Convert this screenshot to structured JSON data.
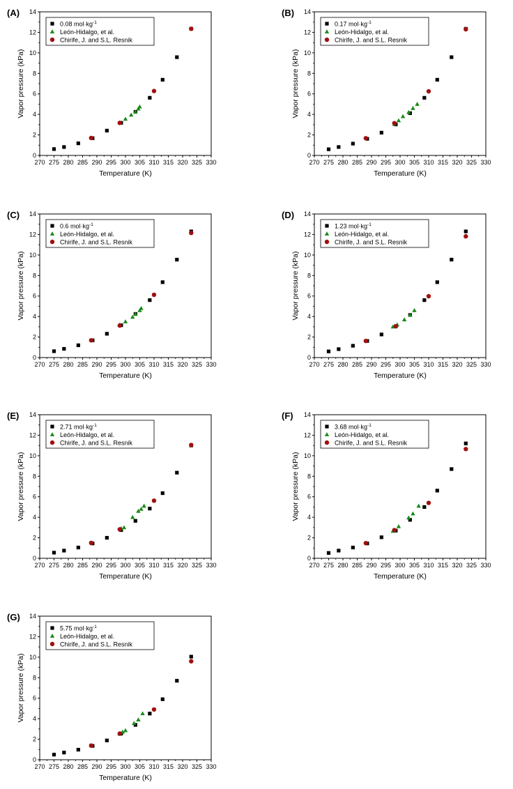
{
  "figure": {
    "colors": {
      "model": "#000000",
      "leon": "#1a8a1a",
      "chirife": "#a01010"
    }
  },
  "chart_data": [
    {
      "type": "scatter",
      "panel": "(A)",
      "title": "",
      "xlabel": "Temperature (K)",
      "ylabel": "Vapor pressure (kPa)",
      "xlim": [
        270,
        330
      ],
      "ylim": [
        0,
        14
      ],
      "xticks": [
        "270",
        "275",
        "280",
        "285",
        "290",
        "295",
        "300",
        "305",
        "310",
        "315",
        "320",
        "325",
        "330"
      ],
      "yticks": [
        "0",
        "2",
        "4",
        "6",
        "8",
        "10",
        "12",
        "14"
      ],
      "series": [
        {
          "name_prefix": "0.08 mol·kg",
          "name_sup": "-1",
          "marker": "square",
          "x": [
            275,
            278.5,
            283.5,
            288.5,
            293.5,
            298.5,
            303.5,
            308.5,
            313,
            318,
            323
          ],
          "y": [
            0.62,
            0.82,
            1.18,
            1.68,
            2.42,
            3.18,
            4.25,
            5.62,
            7.38,
            9.58,
            12.35
          ]
        },
        {
          "name": "León-Hidalgo, et al.",
          "marker": "triangle",
          "x": [
            298,
            300,
            302,
            303.5,
            304.5,
            305
          ],
          "y": [
            3.2,
            3.55,
            3.95,
            4.25,
            4.55,
            4.75
          ]
        },
        {
          "name": "Chirife, J. and S.L. Resnik",
          "marker": "circle",
          "x": [
            288,
            298,
            310,
            323
          ],
          "y": [
            1.7,
            3.17,
            6.28,
            12.35
          ]
        }
      ]
    },
    {
      "type": "scatter",
      "panel": "(B)",
      "title": "",
      "xlabel": "Temperature (K)",
      "ylabel": "Vapor pressure (kPa)",
      "xlim": [
        270,
        330
      ],
      "ylim": [
        0,
        14
      ],
      "xticks": [
        "270",
        "275",
        "280",
        "285",
        "290",
        "295",
        "300",
        "305",
        "310",
        "315",
        "320",
        "325",
        "330"
      ],
      "yticks": [
        "0",
        "2",
        "4",
        "6",
        "8",
        "10",
        "12",
        "14"
      ],
      "series": [
        {
          "name_prefix": "0.17 mol·kg",
          "name_sup": "-1",
          "marker": "square",
          "x": [
            275,
            278.5,
            283.5,
            288.5,
            293.5,
            298.5,
            303.5,
            308.5,
            313,
            318,
            323
          ],
          "y": [
            0.6,
            0.82,
            1.15,
            1.62,
            2.22,
            3.02,
            4.12,
            5.62,
            7.38,
            9.58,
            12.35
          ]
        },
        {
          "name": "León-Hidalgo, et al.",
          "marker": "triangle",
          "x": [
            298,
            299.5,
            301,
            303,
            304.5,
            306
          ],
          "y": [
            3.05,
            3.4,
            3.8,
            4.2,
            4.6,
            5.0
          ]
        },
        {
          "name": "Chirife, J. and S.L. Resnik",
          "marker": "circle",
          "x": [
            288,
            298,
            310,
            323
          ],
          "y": [
            1.68,
            3.15,
            6.25,
            12.3
          ]
        }
      ]
    },
    {
      "type": "scatter",
      "panel": "(C)",
      "title": "",
      "xlabel": "Temperature (K)",
      "ylabel": "Vapor pressure (kPa)",
      "xlim": [
        270,
        330
      ],
      "ylim": [
        0,
        14
      ],
      "xticks": [
        "270",
        "275",
        "280",
        "285",
        "290",
        "295",
        "300",
        "305",
        "310",
        "315",
        "320",
        "325",
        "330"
      ],
      "yticks": [
        "0",
        "2",
        "4",
        "6",
        "8",
        "10",
        "12",
        "14"
      ],
      "series": [
        {
          "name_prefix": "0.6 mol·kg",
          "name_sup": "-1",
          "marker": "square",
          "x": [
            275,
            278.5,
            283.5,
            288.5,
            293.5,
            298.5,
            303.5,
            308.5,
            313,
            318,
            323
          ],
          "y": [
            0.62,
            0.85,
            1.2,
            1.68,
            2.32,
            3.15,
            4.25,
            5.6,
            7.35,
            9.55,
            12.3
          ]
        },
        {
          "name": "León-Hidalgo, et al.",
          "marker": "triangle",
          "x": [
            298,
            300,
            302.5,
            303.5,
            305,
            305.5
          ],
          "y": [
            3.2,
            3.5,
            3.95,
            4.25,
            4.6,
            4.8
          ]
        },
        {
          "name": "Chirife, J. and S.L. Resnik",
          "marker": "circle",
          "x": [
            288,
            298,
            310,
            323
          ],
          "y": [
            1.68,
            3.12,
            6.12,
            12.15
          ]
        }
      ]
    },
    {
      "type": "scatter",
      "panel": "(D)",
      "title": "",
      "xlabel": "Temperature (K)",
      "ylabel": "Vapor pressure (kPa)",
      "xlim": [
        270,
        330
      ],
      "ylim": [
        0,
        14
      ],
      "xticks": [
        "270",
        "275",
        "280",
        "285",
        "290",
        "295",
        "300",
        "305",
        "310",
        "315",
        "320",
        "325",
        "330"
      ],
      "yticks": [
        "0",
        "2",
        "4",
        "6",
        "8",
        "10",
        "12",
        "14"
      ],
      "series": [
        {
          "name_prefix": "1.23 mol·kg",
          "name_sup": "-1",
          "marker": "square",
          "x": [
            275,
            278.5,
            283.5,
            288.5,
            293.5,
            298.5,
            303.5,
            308.5,
            313,
            318,
            323
          ],
          "y": [
            0.6,
            0.82,
            1.15,
            1.62,
            2.25,
            3.05,
            4.15,
            5.6,
            7.35,
            9.55,
            12.3
          ]
        },
        {
          "name": "León-Hidalgo, et al.",
          "marker": "triangle",
          "x": [
            297.5,
            299,
            301.5,
            303.5,
            305
          ],
          "y": [
            3.0,
            3.2,
            3.7,
            4.15,
            4.6
          ]
        },
        {
          "name": "Chirife, J. and S.L. Resnik",
          "marker": "circle",
          "x": [
            288,
            298.5,
            310,
            323
          ],
          "y": [
            1.62,
            3.05,
            5.98,
            11.82
          ]
        }
      ]
    },
    {
      "type": "scatter",
      "panel": "(E)",
      "title": "",
      "xlabel": "Temperature (K)",
      "ylabel": "Vapor pressure (kPa)",
      "xlim": [
        270,
        330
      ],
      "ylim": [
        0,
        14
      ],
      "xticks": [
        "270",
        "275",
        "280",
        "285",
        "290",
        "295",
        "300",
        "305",
        "310",
        "315",
        "320",
        "325",
        "330"
      ],
      "yticks": [
        "0",
        "2",
        "4",
        "6",
        "8",
        "10",
        "12",
        "14"
      ],
      "series": [
        {
          "name_prefix": "2.71 mol·kg",
          "name_sup": "-1",
          "marker": "square",
          "x": [
            275,
            278.5,
            283.5,
            288.5,
            293.5,
            298.5,
            303.5,
            308.5,
            313,
            318,
            323
          ],
          "y": [
            0.55,
            0.75,
            1.05,
            1.45,
            2.0,
            2.75,
            3.65,
            4.85,
            6.35,
            8.35,
            11.0
          ]
        },
        {
          "name": "León-Hidalgo, et al.",
          "marker": "triangle",
          "x": [
            298.5,
            299.5,
            302.5,
            304.5,
            305.5,
            306.5
          ],
          "y": [
            2.9,
            3.0,
            4.0,
            4.6,
            4.8,
            5.1
          ]
        },
        {
          "name": "Chirife, J. and S.L. Resnik",
          "marker": "circle",
          "x": [
            288,
            298,
            310,
            323
          ],
          "y": [
            1.5,
            2.82,
            5.62,
            11.05
          ]
        }
      ]
    },
    {
      "type": "scatter",
      "panel": "(F)",
      "title": "",
      "xlabel": "Temperature (K)",
      "ylabel": "Vapor pressure (kPa)",
      "xlim": [
        270,
        330
      ],
      "ylim": [
        0,
        14
      ],
      "xticks": [
        "270",
        "275",
        "280",
        "285",
        "290",
        "295",
        "300",
        "305",
        "310",
        "315",
        "320",
        "325",
        "330"
      ],
      "yticks": [
        "0",
        "2",
        "4",
        "6",
        "8",
        "10",
        "12",
        "14"
      ],
      "series": [
        {
          "name_prefix": "3.68 mol·kg",
          "name_sup": "-1",
          "marker": "square",
          "x": [
            275,
            278.5,
            283.5,
            288.5,
            293.5,
            298.5,
            303.5,
            308.5,
            313,
            318,
            323
          ],
          "y": [
            0.52,
            0.75,
            1.05,
            1.45,
            2.05,
            2.7,
            3.75,
            5.0,
            6.6,
            8.7,
            11.2
          ]
        },
        {
          "name": "León-Hidalgo, et al.",
          "marker": "triangle",
          "x": [
            297.5,
            299.5,
            303,
            304.5,
            306.5
          ],
          "y": [
            2.65,
            3.1,
            3.95,
            4.35,
            5.1
          ]
        },
        {
          "name": "Chirife, J. and S.L. Resnik",
          "marker": "circle",
          "x": [
            288,
            298,
            310,
            323
          ],
          "y": [
            1.48,
            2.75,
            5.4,
            10.65
          ]
        }
      ]
    },
    {
      "type": "scatter",
      "panel": "(G)",
      "title": "",
      "xlabel": "Temperature (K)",
      "ylabel": "Vapor pressure (kPa)",
      "xlim": [
        270,
        330
      ],
      "ylim": [
        0,
        14
      ],
      "xticks": [
        "270",
        "275",
        "280",
        "285",
        "290",
        "295",
        "300",
        "305",
        "310",
        "315",
        "320",
        "325",
        "330"
      ],
      "yticks": [
        "0",
        "2",
        "4",
        "6",
        "8",
        "10",
        "12",
        "14"
      ],
      "series": [
        {
          "name_prefix": "5.75 mol·kg",
          "name_sup": "-1",
          "marker": "square",
          "x": [
            275,
            278.5,
            283.5,
            288.5,
            293.5,
            298.5,
            303.5,
            308.5,
            313,
            318,
            323
          ],
          "y": [
            0.5,
            0.7,
            0.98,
            1.35,
            1.88,
            2.55,
            3.4,
            4.5,
            5.9,
            7.7,
            10.05
          ]
        },
        {
          "name": "León-Hidalgo, et al.",
          "marker": "triangle",
          "x": [
            298,
            299,
            300,
            303,
            304.5,
            306
          ],
          "y": [
            2.5,
            2.7,
            2.85,
            3.55,
            3.9,
            4.5
          ]
        },
        {
          "name": "Chirife, J. and S.L. Resnik",
          "marker": "circle",
          "x": [
            288,
            298,
            310,
            323
          ],
          "y": [
            1.38,
            2.55,
            4.9,
            9.6
          ]
        }
      ]
    }
  ]
}
